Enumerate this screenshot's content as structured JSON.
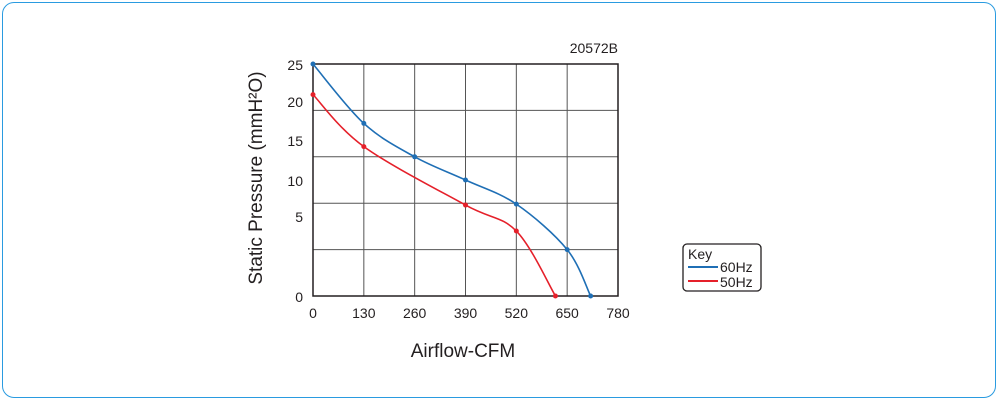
{
  "chart_data": {
    "type": "line",
    "title": "20572B",
    "xlabel": "Airflow-CFM",
    "ylabel": "Static Pressure (mmH²O)",
    "xlim": [
      0,
      780
    ],
    "ylim": [
      0,
      25
    ],
    "x_ticks": [
      "0",
      "130",
      "260",
      "390",
      "520",
      "650",
      "780"
    ],
    "y_ticks": [
      "0",
      "5",
      "10",
      "15",
      "20",
      "25"
    ],
    "grid": true,
    "legend": {
      "title": "Key",
      "placement": "right"
    },
    "series": [
      {
        "name": "60Hz",
        "color": "#1f6fb5",
        "x": [
          0,
          130,
          260,
          390,
          520,
          650,
          710
        ],
        "y": [
          25,
          18.6,
          15.0,
          12.5,
          9.9,
          5.0,
          0
        ]
      },
      {
        "name": "50Hz",
        "color": "#e5202a",
        "x": [
          0,
          130,
          390,
          520,
          620
        ],
        "y": [
          21.7,
          16.1,
          9.8,
          7.0,
          0
        ]
      }
    ]
  }
}
